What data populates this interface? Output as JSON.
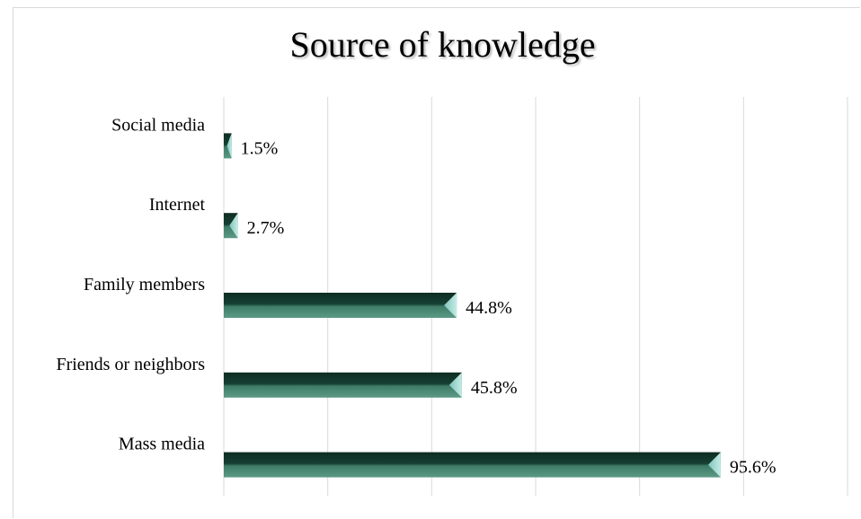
{
  "chart_data": {
    "type": "bar",
    "orientation": "horizontal",
    "title": "Source of knowledge",
    "categories": [
      "Social media",
      "Internet",
      "Family members",
      "Friends or neighbors",
      "Mass media"
    ],
    "values": [
      1.5,
      2.7,
      44.8,
      45.8,
      95.6
    ],
    "data_labels": [
      "1.5%",
      "2.7%",
      "44.8%",
      "45.8%",
      "95.6%"
    ],
    "xlim": [
      0,
      120
    ],
    "grid": true,
    "legend": "none",
    "colors": {
      "bar_dark": "#0f3328",
      "bar_mid": "#2f6b57",
      "bar_light": "#5c9a86",
      "bar_tip": "#9fd6cf",
      "grid": "#d9d9d9"
    }
  }
}
